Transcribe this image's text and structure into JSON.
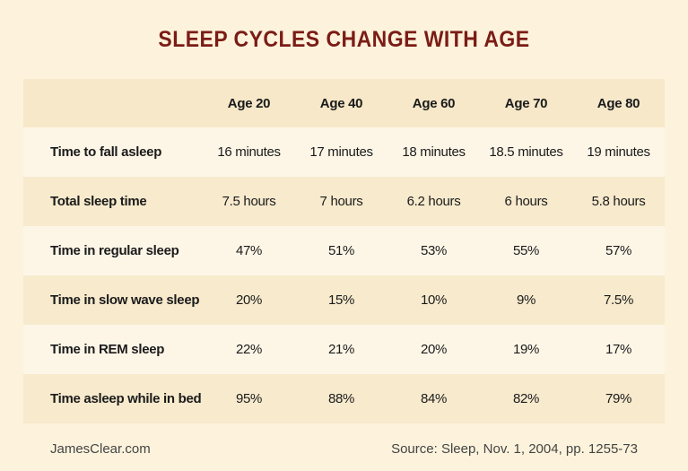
{
  "title": "SLEEP CYCLES CHANGE WITH AGE",
  "chart_data": {
    "type": "table",
    "columns": [
      "",
      "Age 20",
      "Age 40",
      "Age 60",
      "Age 70",
      "Age 80"
    ],
    "rows": [
      {
        "label": "Time to fall asleep",
        "values": [
          "16 minutes",
          "17 minutes",
          "18 minutes",
          "18.5 minutes",
          "19 minutes"
        ]
      },
      {
        "label": "Total sleep time",
        "values": [
          "7.5 hours",
          "7 hours",
          "6.2 hours",
          "6 hours",
          "5.8 hours"
        ]
      },
      {
        "label": "Time in regular sleep",
        "values": [
          "47%",
          "51%",
          "53%",
          "55%",
          "57%"
        ]
      },
      {
        "label": "Time in slow wave sleep",
        "values": [
          "20%",
          "15%",
          "10%",
          "9%",
          "7.5%"
        ]
      },
      {
        "label": "Time in REM sleep",
        "values": [
          "22%",
          "21%",
          "20%",
          "19%",
          "17%"
        ]
      },
      {
        "label": "Time asleep while in bed",
        "values": [
          "95%",
          "88%",
          "84%",
          "82%",
          "79%"
        ]
      }
    ]
  },
  "footer": {
    "brand": "JamesClear.com",
    "source": "Source: Sleep, Nov. 1, 2004, pp. 1255-73"
  },
  "colors": {
    "title": "#7b1c16",
    "background": "#fdf3dc",
    "header_row": "#f6e8c9",
    "light_row": "#fdf6e7",
    "dark_row": "#f7eacd"
  }
}
